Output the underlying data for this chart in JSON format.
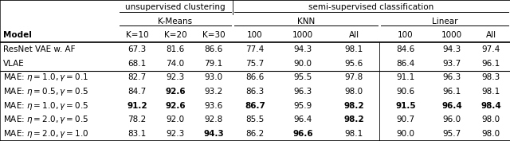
{
  "col_headers": [
    "Model",
    "K=10",
    "K=20",
    "K=30",
    "100",
    "1000",
    "All",
    "100",
    "1000",
    "All"
  ],
  "rows": [
    {
      "model": "ResNet VAE w. AF",
      "values": [
        "67.3",
        "81.6",
        "86.6",
        "77.4",
        "94.3",
        "98.1",
        "84.6",
        "94.3",
        "97.4"
      ],
      "bold": [
        false,
        false,
        false,
        false,
        false,
        false,
        false,
        false,
        false
      ],
      "section": "baseline",
      "model_bold": false
    },
    {
      "model": "VLAE",
      "values": [
        "68.1",
        "74.0",
        "79.1",
        "75.7",
        "90.0",
        "95.6",
        "86.4",
        "93.7",
        "96.1"
      ],
      "bold": [
        false,
        false,
        false,
        false,
        false,
        false,
        false,
        false,
        false
      ],
      "section": "baseline",
      "model_bold": false
    },
    {
      "model": "MAE: $\\eta = 1.0, \\gamma = 0.1$",
      "values": [
        "82.7",
        "92.3",
        "93.0",
        "86.6",
        "95.5",
        "97.8",
        "91.1",
        "96.3",
        "98.3"
      ],
      "bold": [
        false,
        false,
        false,
        false,
        false,
        false,
        false,
        false,
        false
      ],
      "section": "mae",
      "model_bold": false
    },
    {
      "model": "MAE: $\\eta = 0.5, \\gamma = 0.5$",
      "values": [
        "84.7",
        "92.6",
        "93.2",
        "86.3",
        "96.3",
        "98.0",
        "90.6",
        "96.1",
        "98.1"
      ],
      "bold": [
        false,
        true,
        false,
        false,
        false,
        false,
        false,
        false,
        false
      ],
      "section": "mae",
      "model_bold": false
    },
    {
      "model": "MAE: $\\eta = 1.0, \\gamma = 0.5$",
      "values": [
        "91.2",
        "92.6",
        "93.6",
        "86.7",
        "95.9",
        "98.2",
        "91.5",
        "96.4",
        "98.4"
      ],
      "bold": [
        true,
        true,
        false,
        true,
        false,
        true,
        true,
        true,
        true
      ],
      "section": "mae",
      "model_bold": false
    },
    {
      "model": "MAE: $\\eta = 2.0, \\gamma = 0.5$",
      "values": [
        "78.2",
        "92.0",
        "92.8",
        "85.5",
        "96.4",
        "98.2",
        "90.7",
        "96.0",
        "98.0"
      ],
      "bold": [
        false,
        false,
        false,
        false,
        false,
        true,
        false,
        false,
        false
      ],
      "section": "mae",
      "model_bold": false
    },
    {
      "model": "MAE: $\\eta = 2.0, \\gamma = 1.0$",
      "values": [
        "83.1",
        "92.3",
        "94.3",
        "86.2",
        "96.6",
        "98.1",
        "90.0",
        "95.7",
        "98.0"
      ],
      "bold": [
        false,
        false,
        true,
        false,
        true,
        false,
        false,
        false,
        false
      ],
      "section": "mae",
      "model_bold": false
    }
  ],
  "background_color": "#ffffff",
  "font_size": 7.5
}
